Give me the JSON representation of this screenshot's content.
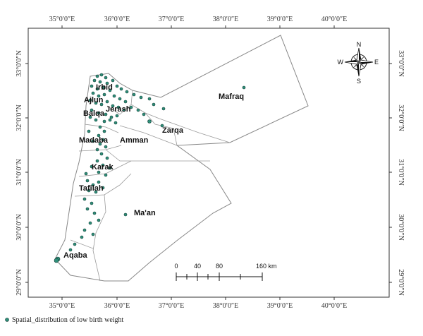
{
  "map": {
    "top_ticks": [
      "35°0′0″E",
      "36°0′0″E",
      "37°0′0″E",
      "38°0′0″E",
      "39°0′0″E",
      "40°0′0″E"
    ],
    "bottom_ticks": [
      "35°0′0″E",
      "36°0′0″E",
      "37°0′0″E",
      "38°0′0″E",
      "39°0′0″E",
      "40°0′0″E"
    ],
    "left_ticks": [
      "33°0′0″N",
      "32°0′0″N",
      "31°0′0″N",
      "30°0′0″N",
      "29°0′0″N"
    ],
    "right_ticks": [
      "33°0′0″N",
      "32°0′0″N",
      "31°0′0″N",
      "30°0′0″N",
      "29°0′0″N"
    ],
    "governorates": [
      "Irbid",
      "Ajlun",
      "Jerash",
      "Balqa",
      "Mafraq",
      "Zarqa",
      "Madaba",
      "Amman",
      "Karak",
      "Tafilah",
      "Ma'an",
      "Aqaba"
    ],
    "scale_bar": {
      "labels": [
        "0",
        "40",
        "80",
        "160 km"
      ]
    },
    "compass": {
      "n": "N",
      "s": "S",
      "e": "E",
      "w": "W"
    },
    "legend": {
      "label": "Spatial_distribution of low birth weight",
      "color": "#2f8f7a"
    }
  }
}
